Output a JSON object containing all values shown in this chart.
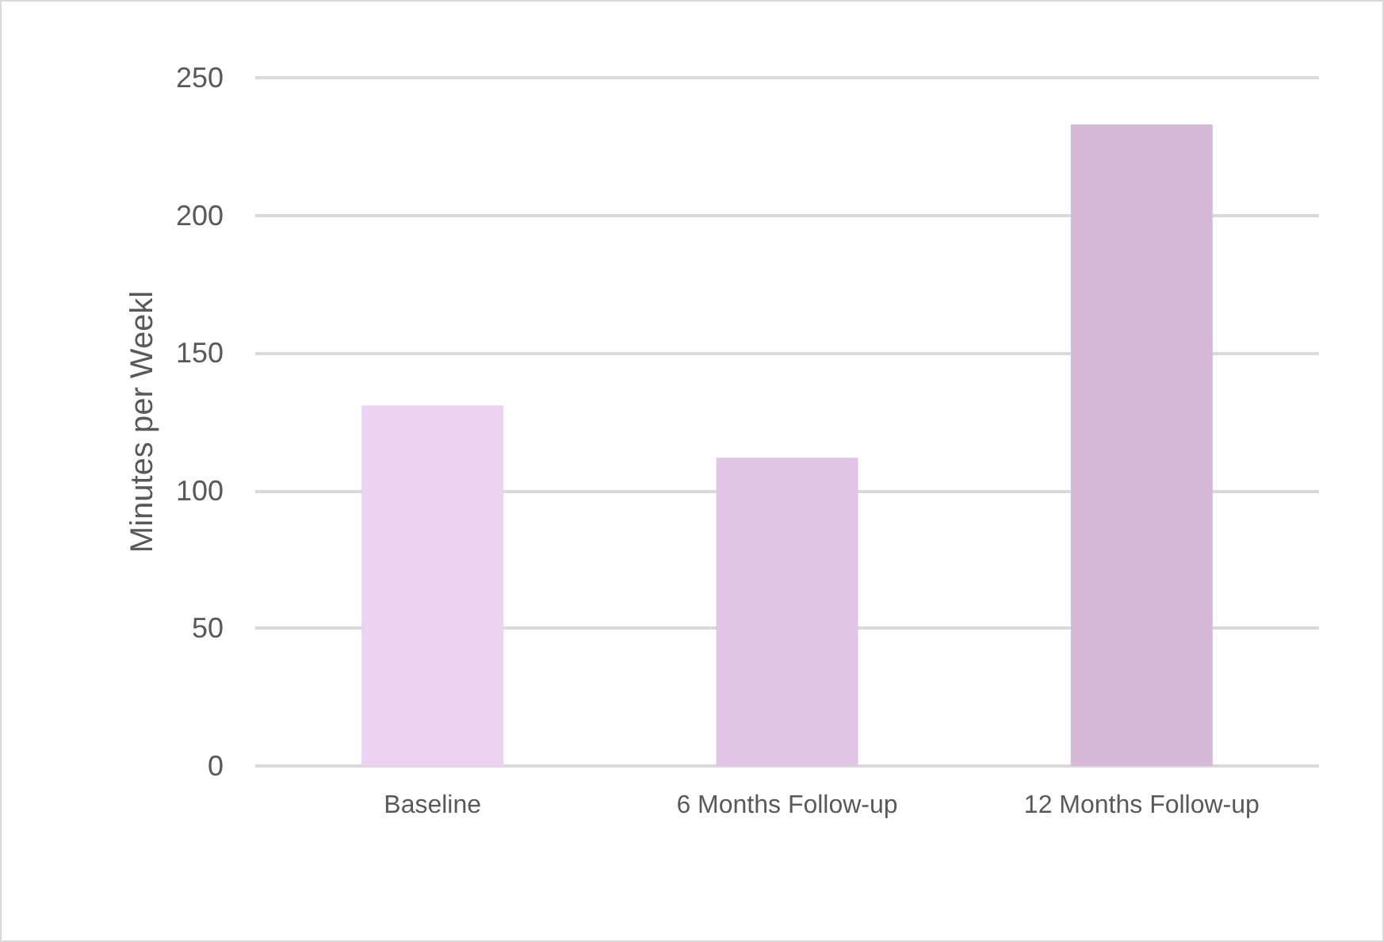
{
  "chart_data": {
    "type": "bar",
    "ylabel": "Minutes per Weekl",
    "categories": [
      "Baseline",
      "6 Months Follow-up",
      "12 Months Follow-up"
    ],
    "values": [
      131,
      112,
      233
    ],
    "colors": [
      "#ecd3f0",
      "#e0c6e4",
      "#d5b9d7"
    ],
    "ylim": [
      0,
      250
    ],
    "yticks": [
      0,
      50,
      100,
      150,
      200,
      250
    ],
    "grid": "y"
  }
}
